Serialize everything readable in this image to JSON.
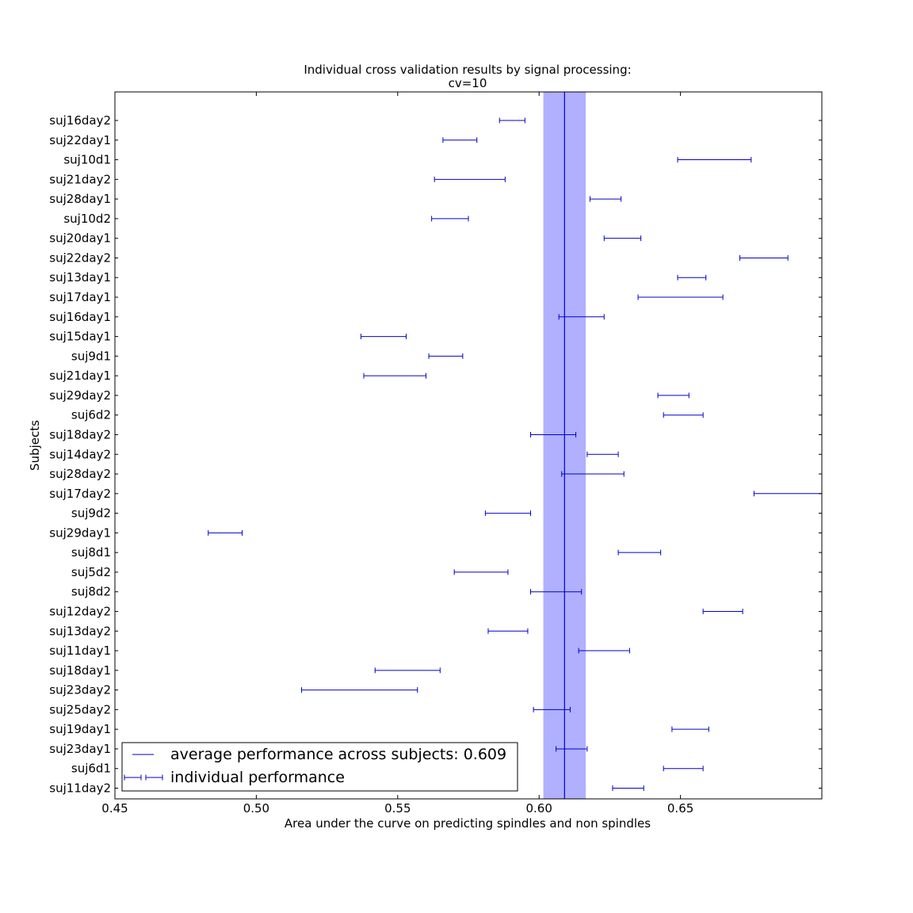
{
  "chart_data": {
    "type": "errorbar",
    "title_line1": "Individual cross validation results by signal processing:",
    "title_line2": "cv=10",
    "xlabel": "Area under the curve on predicting spindles and non spindles",
    "ylabel": "Subjects",
    "xlim": [
      0.45,
      0.7
    ],
    "xticks": [
      "0.45",
      "0.50",
      "0.55",
      "0.60",
      "0.65"
    ],
    "average": 0.609,
    "average_band": [
      0.6015,
      0.6165
    ],
    "legend": {
      "position": "lower-left",
      "average_label": "average performance across subjects: 0.609",
      "individual_label": "individual performance"
    },
    "colors": {
      "line": "#0000cc",
      "band": "#b0b0ff"
    },
    "subjects": [
      {
        "name": "suj16day2",
        "low": 0.586,
        "high": 0.595
      },
      {
        "name": "suj22day1",
        "low": 0.566,
        "high": 0.578
      },
      {
        "name": "suj10d1",
        "low": 0.649,
        "high": 0.675
      },
      {
        "name": "suj21day2",
        "low": 0.563,
        "high": 0.588
      },
      {
        "name": "suj28day1",
        "low": 0.618,
        "high": 0.629
      },
      {
        "name": "suj10d2",
        "low": 0.562,
        "high": 0.575
      },
      {
        "name": "suj20day1",
        "low": 0.623,
        "high": 0.636
      },
      {
        "name": "suj22day2",
        "low": 0.671,
        "high": 0.688
      },
      {
        "name": "suj13day1",
        "low": 0.649,
        "high": 0.659
      },
      {
        "name": "suj17day1",
        "low": 0.635,
        "high": 0.665
      },
      {
        "name": "suj16day1",
        "low": 0.607,
        "high": 0.623
      },
      {
        "name": "suj15day1",
        "low": 0.537,
        "high": 0.553
      },
      {
        "name": "suj9d1",
        "low": 0.561,
        "high": 0.573
      },
      {
        "name": "suj21day1",
        "low": 0.538,
        "high": 0.56
      },
      {
        "name": "suj29day2",
        "low": 0.642,
        "high": 0.653
      },
      {
        "name": "suj6d2",
        "low": 0.644,
        "high": 0.658
      },
      {
        "name": "suj18day2",
        "low": 0.597,
        "high": 0.613
      },
      {
        "name": "suj14day2",
        "low": 0.617,
        "high": 0.628
      },
      {
        "name": "suj28day2",
        "low": 0.608,
        "high": 0.63
      },
      {
        "name": "suj17day2",
        "low": 0.676,
        "high": 0.7
      },
      {
        "name": "suj9d2",
        "low": 0.581,
        "high": 0.597
      },
      {
        "name": "suj29day1",
        "low": 0.483,
        "high": 0.495
      },
      {
        "name": "suj8d1",
        "low": 0.628,
        "high": 0.643
      },
      {
        "name": "suj5d2",
        "low": 0.57,
        "high": 0.589
      },
      {
        "name": "suj8d2",
        "low": 0.597,
        "high": 0.615
      },
      {
        "name": "suj12day2",
        "low": 0.658,
        "high": 0.672
      },
      {
        "name": "suj13day2",
        "low": 0.582,
        "high": 0.596
      },
      {
        "name": "suj11day1",
        "low": 0.614,
        "high": 0.632
      },
      {
        "name": "suj18day1",
        "low": 0.542,
        "high": 0.565
      },
      {
        "name": "suj23day2",
        "low": 0.516,
        "high": 0.557
      },
      {
        "name": "suj25day2",
        "low": 0.598,
        "high": 0.611
      },
      {
        "name": "suj19day1",
        "low": 0.647,
        "high": 0.66
      },
      {
        "name": "suj23day1",
        "low": 0.606,
        "high": 0.617
      },
      {
        "name": "suj6d1",
        "low": 0.644,
        "high": 0.658
      },
      {
        "name": "suj11day2",
        "low": 0.626,
        "high": 0.637
      }
    ]
  }
}
